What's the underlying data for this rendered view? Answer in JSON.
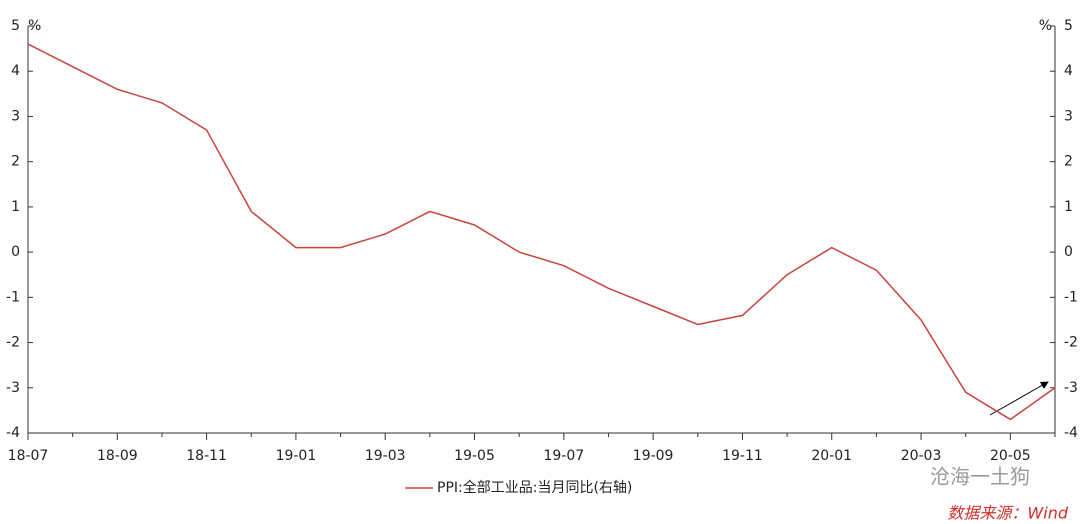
{
  "chart_data": {
    "type": "line",
    "categories": [
      "18-07",
      null,
      "18-09",
      null,
      "18-11",
      null,
      "19-01",
      null,
      "19-03",
      null,
      "19-05",
      null,
      "19-07",
      null,
      "19-09",
      null,
      "19-11",
      null,
      "20-01",
      null,
      "20-03",
      null,
      "20-05",
      null
    ],
    "series": [
      {
        "name": "PPI:全部工业品:当月同比(右轴)",
        "color": "#c8453e",
        "axis": "y2",
        "values": [
          4.6,
          4.1,
          3.6,
          3.3,
          2.7,
          0.9,
          0.1,
          0.1,
          0.4,
          0.9,
          0.6,
          0.0,
          -0.3,
          -0.8,
          -1.2,
          -1.6,
          -1.4,
          -0.5,
          0.1,
          -0.4,
          -1.5,
          -3.1,
          -3.7,
          -3.0
        ]
      }
    ],
    "ylabel": "%",
    "y2label": "%",
    "ylim": [
      -4,
      5
    ],
    "yticks": [
      -4,
      -3,
      -2,
      -1,
      0,
      1,
      2,
      3,
      4,
      5
    ],
    "y2lim": [
      -4,
      5
    ],
    "y2ticks": [
      -4,
      -3,
      -2,
      -1,
      0,
      1,
      2,
      3,
      4,
      5
    ],
    "legend": "bottom",
    "watermark": "沧海一土狗",
    "source": "数据来源：Wind"
  }
}
